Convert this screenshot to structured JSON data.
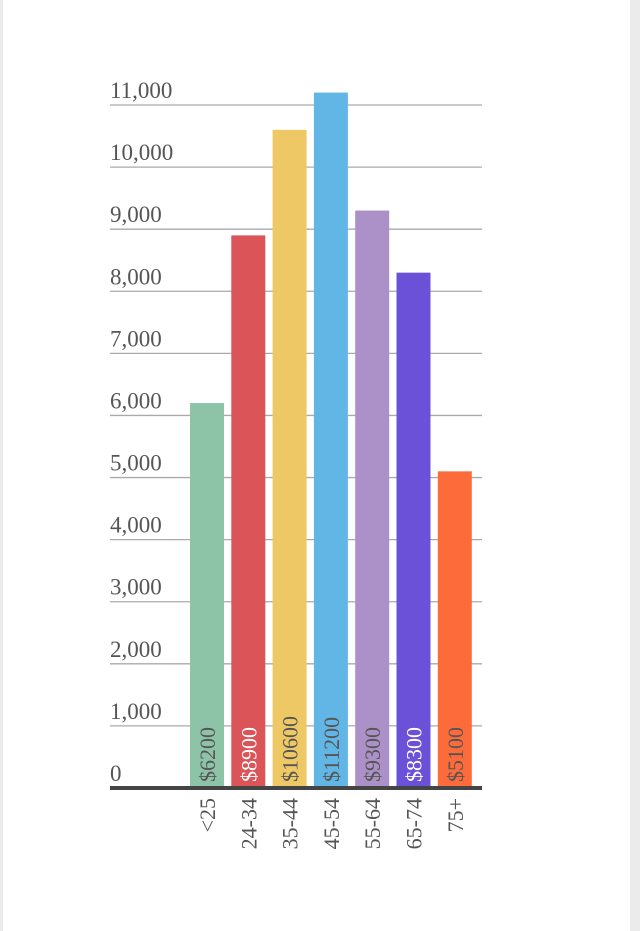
{
  "chart_data": {
    "type": "bar",
    "title": "",
    "xlabel": "",
    "ylabel": "",
    "categories": [
      "<25",
      "24-34",
      "35-44",
      "45-54",
      "55-64",
      "65-74",
      "75+"
    ],
    "values": [
      6200,
      8900,
      10600,
      11200,
      9300,
      8300,
      5100
    ],
    "data_labels": [
      "$6200",
      "$8900",
      "$10600",
      "$11200",
      "$9300",
      "$8300",
      "$5100"
    ],
    "colors": [
      "#8dc3a7",
      "#db5457",
      "#efc866",
      "#62b6e5",
      "#ab91c8",
      "#6b50d8",
      "#fe6b3a"
    ],
    "label_colors": [
      "#555555",
      "#ffffff",
      "#555555",
      "#555555",
      "#555555",
      "#ffffff",
      "#555555"
    ],
    "ylim": [
      0,
      11000
    ],
    "yticks": [
      0,
      1000,
      2000,
      3000,
      4000,
      5000,
      6000,
      7000,
      8000,
      9000,
      10000,
      11000
    ],
    "ytick_labels": [
      "0",
      "1,000",
      "2,000",
      "3,000",
      "4,000",
      "5,000",
      "6,000",
      "7,000",
      "8,000",
      "9,000",
      "10,000",
      "11,000"
    ],
    "grid": true,
    "legend": "none"
  }
}
